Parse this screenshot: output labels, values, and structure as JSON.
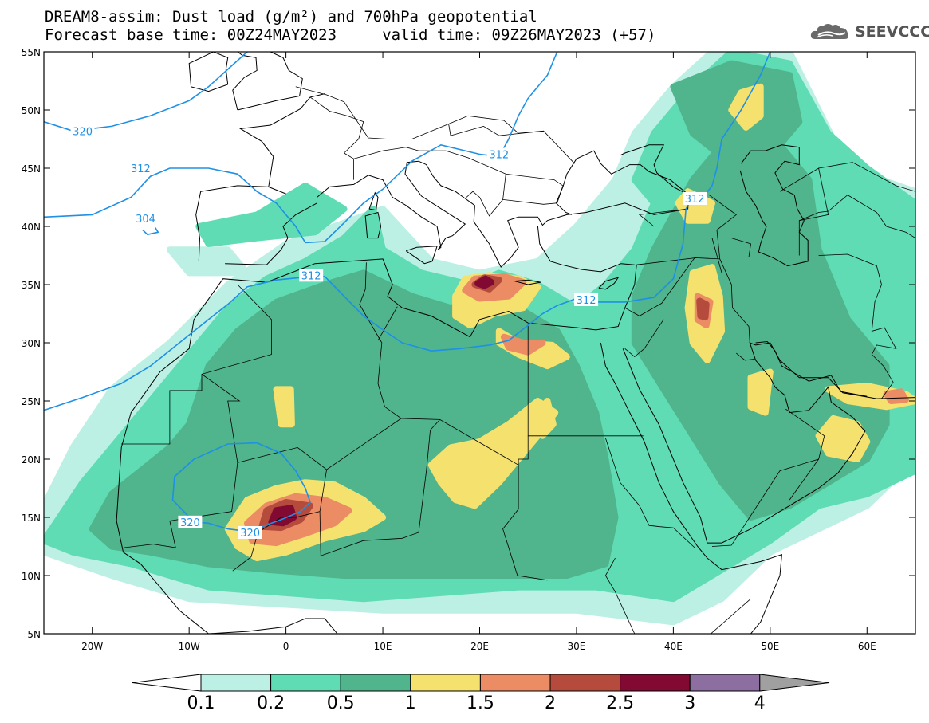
{
  "header": {
    "title_line1": "DREAM8-assim: Dust load (g/m²) and 700hPa geopotential",
    "title_line2": "Forecast base time: 00Z24MAY2023     valid time: 09Z26MAY2023 (+57)",
    "logo_text": "SEEVCCC",
    "logo_icon": "cloud-icon"
  },
  "map": {
    "lon_range": [
      -25,
      65
    ],
    "lat_range": [
      5,
      55
    ],
    "lat_ticks": [
      "55N",
      "50N",
      "45N",
      "40N",
      "35N",
      "30N",
      "25N",
      "20N",
      "15N",
      "10N",
      "5N"
    ],
    "lon_ticks": [
      "20W",
      "10W",
      "0",
      "10E",
      "20E",
      "30E",
      "40E",
      "50E",
      "60E"
    ],
    "contour_labels": [
      {
        "text": "320",
        "lon": -21,
        "lat": 48.2
      },
      {
        "text": "312",
        "lon": -15,
        "lat": 45.0
      },
      {
        "text": "304",
        "lon": -14.5,
        "lat": 40.7
      },
      {
        "text": "312",
        "lon": 2.6,
        "lat": 35.8
      },
      {
        "text": "312",
        "lon": 22,
        "lat": 46.2
      },
      {
        "text": "312",
        "lon": 31,
        "lat": 33.7
      },
      {
        "text": "312",
        "lon": 42.2,
        "lat": 42.4
      },
      {
        "text": "320",
        "lon": -9.9,
        "lat": 14.6
      },
      {
        "text": "320",
        "lon": -3.7,
        "lat": 13.7
      }
    ],
    "colors": {
      "c1": "#bdf0e4",
      "c2": "#5fdcb4",
      "c3": "#50b48c",
      "c4": "#f5e16e",
      "c5": "#eb8c64",
      "c6": "#b44b3c",
      "c7": "#820a32",
      "c8": "#8c6ea0",
      "c9": "#a0a0a0",
      "contour": "#1e90e6"
    }
  },
  "colorbar": {
    "labels": [
      "0.1",
      "0.2",
      "0.5",
      "1",
      "1.5",
      "2",
      "2.5",
      "3",
      "4"
    ],
    "colors": [
      "#bdf0e4",
      "#5fdcb4",
      "#50b48c",
      "#f5e16e",
      "#eb8c64",
      "#b44b3c",
      "#820a32",
      "#8c6ea0"
    ],
    "under_color": "#ffffff",
    "over_color": "#a0a0a0"
  }
}
